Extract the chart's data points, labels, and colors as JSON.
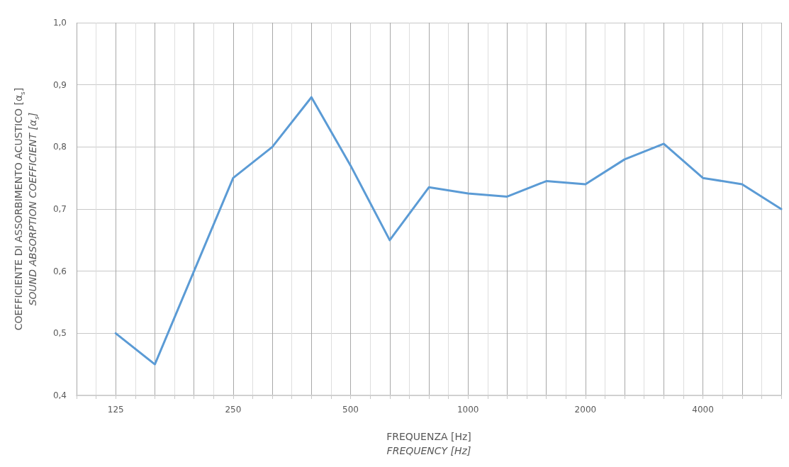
{
  "chart_data": {
    "type": "line",
    "categories": [
      null,
      "125",
      null,
      null,
      "250",
      null,
      null,
      "500",
      null,
      null,
      "1000",
      null,
      null,
      "2000",
      null,
      null,
      "4000",
      null,
      null
    ],
    "series": [
      {
        "color": "#5b9bd5",
        "values": [
          null,
          0.5,
          0.45,
          0.6,
          0.75,
          0.8,
          0.88,
          0.77,
          0.65,
          0.735,
          0.725,
          0.72,
          0.745,
          0.74,
          0.78,
          0.805,
          0.75,
          0.74,
          0.7
        ]
      }
    ],
    "ylim": [
      0.4,
      1.0
    ],
    "yticks": [
      {
        "value": 0.4,
        "label": "0,4"
      },
      {
        "value": 0.5,
        "label": "0,5"
      },
      {
        "value": 0.6,
        "label": "0,6"
      },
      {
        "value": 0.7,
        "label": "0,7"
      },
      {
        "value": 0.8,
        "label": "0,8"
      },
      {
        "value": 0.9,
        "label": "0,9"
      },
      {
        "value": 1.0,
        "label": "1,0"
      }
    ],
    "xlabel": "FREQUENZA [Hz]\nFREQUENCY [Hz]",
    "ylabel": "COEFFICIENTE DI ASSORBIMENTO ACUSTICO [α$_{s}$]\nSOUND ABSORPTION COEFFICIENT [α$_{s}$]",
    "grid": true,
    "marker": "none",
    "line_style": "solid"
  }
}
